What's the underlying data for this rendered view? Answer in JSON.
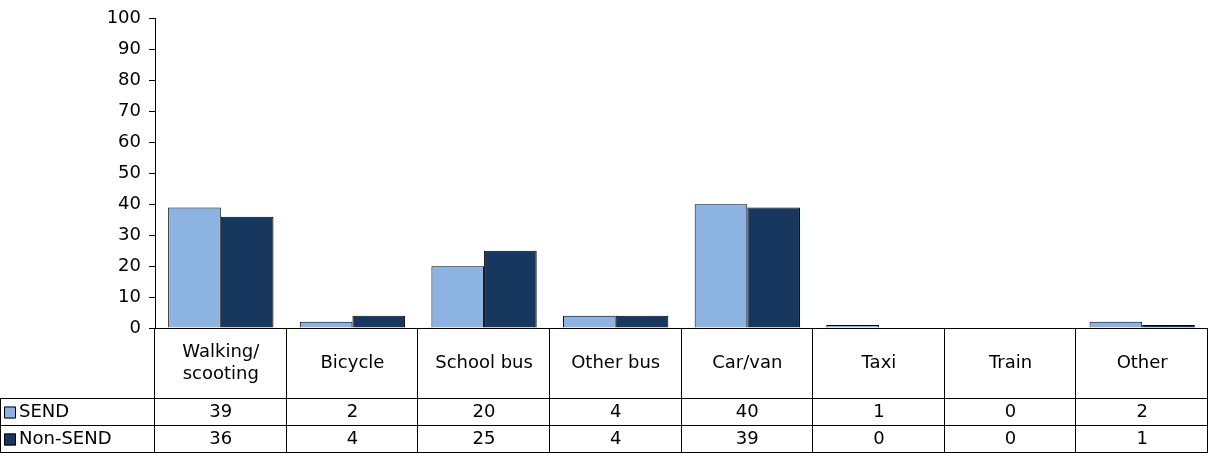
{
  "chart_data": {
    "type": "bar",
    "categories": [
      "Walking/scooting",
      "Bicycle",
      "School bus",
      "Other bus",
      "Car/van",
      "Taxi",
      "Train",
      "Other"
    ],
    "series": [
      {
        "name": "SEND",
        "color": "#8db3e2",
        "values": [
          39,
          2,
          20,
          4,
          40,
          1,
          0,
          2
        ]
      },
      {
        "name": "Non-SEND",
        "color": "#17375e",
        "values": [
          36,
          4,
          25,
          4,
          39,
          0,
          0,
          1
        ]
      }
    ],
    "ylim": [
      0,
      100
    ],
    "yticks": [
      0,
      10,
      20,
      30,
      40,
      50,
      60,
      70,
      80,
      90,
      100
    ],
    "grid": false,
    "legend": "bottom",
    "data_labels": true
  }
}
